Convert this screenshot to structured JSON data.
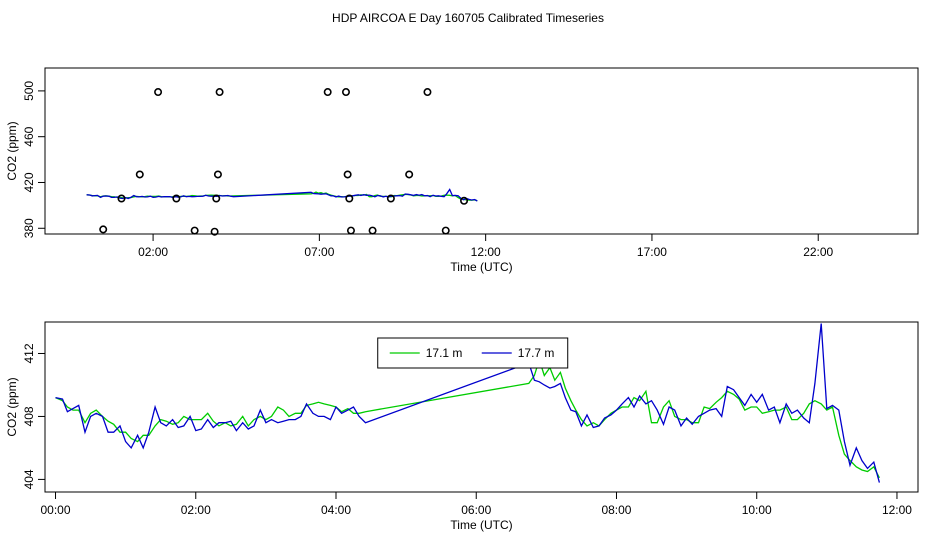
{
  "figure_title": "HDP AIRCOA E  Day 160705  Calibrated Timeseries",
  "chart_data": [
    {
      "type": "scatter",
      "xlabel": "Time (UTC)",
      "ylabel": "CO2 (ppm)",
      "xlim": [
        -1.25,
        25.0
      ],
      "ylim": [
        375,
        520
      ],
      "xticks": [
        2,
        7,
        12,
        17,
        22
      ],
      "xtick_labels": [
        "02:00",
        "07:00",
        "12:00",
        "17:00",
        "22:00"
      ],
      "yticks": [
        380,
        420,
        460,
        500
      ],
      "ytick_labels": [
        "380",
        "420",
        "460",
        "500"
      ],
      "grid": false,
      "calibration_points": {
        "x": [
          0.5,
          1.05,
          1.6,
          2.15,
          2.7,
          3.25,
          3.85,
          3.9,
          3.95,
          4.0,
          7.25,
          7.8,
          7.85,
          7.9,
          7.95,
          8.6,
          9.15,
          9.7,
          10.25,
          10.8,
          11.35
        ],
        "y": [
          379,
          406,
          427,
          499,
          406,
          378,
          377,
          406,
          427,
          499,
          499,
          499,
          427,
          406,
          378,
          378,
          406,
          427,
          499,
          378,
          404
        ]
      },
      "series": [
        {
          "name": "17.1 m",
          "color": "#00cc00"
        },
        {
          "name": "17.7 m",
          "color": "#0000cc"
        }
      ],
      "line_y_offset": 0
    },
    {
      "type": "line",
      "xlabel": "Time (UTC)",
      "ylabel": "CO2 (ppm)",
      "xlim": [
        -0.15,
        12.3
      ],
      "ylim": [
        403.2,
        414.0
      ],
      "xticks": [
        0,
        2,
        4,
        6,
        8,
        10,
        12
      ],
      "xtick_labels": [
        "00:00",
        "02:00",
        "04:00",
        "06:00",
        "08:00",
        "10:00",
        "12:00"
      ],
      "yticks": [
        404,
        408,
        412
      ],
      "ytick_labels": [
        "404",
        "408",
        "412"
      ],
      "grid": false,
      "legend_position": "top-center",
      "series": [
        {
          "name": "17.1 m",
          "color": "#00cc00",
          "x": [
            0.0,
            0.1,
            0.17,
            0.25,
            0.33,
            0.42,
            0.5,
            0.58,
            0.67,
            0.75,
            0.83,
            0.92,
            1.0,
            1.08,
            1.17,
            1.25,
            1.33,
            1.42,
            1.5,
            1.58,
            1.67,
            1.75,
            1.83,
            1.92,
            2.0,
            2.08,
            2.17,
            2.25,
            2.33,
            2.42,
            2.5,
            2.58,
            2.67,
            2.75,
            2.83,
            2.92,
            3.0,
            3.08,
            3.17,
            3.25,
            3.33,
            3.42,
            3.5,
            3.58,
            3.67,
            3.75,
            3.83,
            3.92,
            4.0,
            4.08,
            4.17,
            4.25,
            4.33,
            4.42,
            6.75,
            6.83,
            6.9,
            6.97,
            7.05,
            7.12,
            7.2,
            7.27,
            7.35,
            7.42,
            7.5,
            7.58,
            7.67,
            7.75,
            7.83,
            7.92,
            8.0,
            8.08,
            8.17,
            8.25,
            8.33,
            8.42,
            8.5,
            8.58,
            8.67,
            8.75,
            8.83,
            8.92,
            9.0,
            9.08,
            9.17,
            9.25,
            9.33,
            9.42,
            9.5,
            9.58,
            9.67,
            9.75,
            9.83,
            9.92,
            10.0,
            10.08,
            10.17,
            10.25,
            10.33,
            10.42,
            10.5,
            10.58,
            10.67,
            10.75,
            10.83,
            10.92,
            11.0,
            11.08,
            11.17,
            11.25,
            11.33,
            11.42,
            11.5,
            11.58,
            11.67,
            11.75
          ],
          "y": [
            409.2,
            409.0,
            408.6,
            408.4,
            408.4,
            407.6,
            408.2,
            408.4,
            408.0,
            407.7,
            407.5,
            407.0,
            407.0,
            406.6,
            406.4,
            406.8,
            406.8,
            407.4,
            407.8,
            407.7,
            407.5,
            407.6,
            408.0,
            407.8,
            407.8,
            407.8,
            408.2,
            407.7,
            407.4,
            407.6,
            407.4,
            407.5,
            408.0,
            407.4,
            407.8,
            408.0,
            407.8,
            408.0,
            408.6,
            408.4,
            408.0,
            408.2,
            408.2,
            408.7,
            408.8,
            408.9,
            408.8,
            408.7,
            408.6,
            408.3,
            408.5,
            408.2,
            408.2,
            408.3,
            410.1,
            410.6,
            411.6,
            410.6,
            411.1,
            410.3,
            410.8,
            409.8,
            409.0,
            408.4,
            407.8,
            407.4,
            407.6,
            407.4,
            407.8,
            408.2,
            408.4,
            408.6,
            408.6,
            409.2,
            409.0,
            409.6,
            407.6,
            407.6,
            408.6,
            409.0,
            408.0,
            407.8,
            407.8,
            407.6,
            407.6,
            408.6,
            408.5,
            408.9,
            409.2,
            409.6,
            409.4,
            409.1,
            408.4,
            408.6,
            408.6,
            408.2,
            408.3,
            408.4,
            408.4,
            408.6,
            407.8,
            407.8,
            408.2,
            408.8,
            409.0,
            408.8,
            408.4,
            408.6,
            406.8,
            405.6,
            405.2,
            404.8,
            404.6,
            404.5,
            404.8,
            404.1
          ]
        },
        {
          "name": "17.7 m",
          "color": "#0000cc",
          "x": [
            0.0,
            0.1,
            0.17,
            0.25,
            0.33,
            0.42,
            0.5,
            0.58,
            0.67,
            0.75,
            0.83,
            0.92,
            1.0,
            1.08,
            1.17,
            1.25,
            1.33,
            1.42,
            1.5,
            1.58,
            1.67,
            1.75,
            1.83,
            1.92,
            2.0,
            2.08,
            2.17,
            2.25,
            2.33,
            2.42,
            2.5,
            2.58,
            2.67,
            2.75,
            2.83,
            2.92,
            3.0,
            3.08,
            3.17,
            3.25,
            3.33,
            3.42,
            3.5,
            3.58,
            3.67,
            3.75,
            3.83,
            3.92,
            4.0,
            4.08,
            4.17,
            4.25,
            4.33,
            4.42,
            6.75,
            6.83,
            6.9,
            6.97,
            7.05,
            7.12,
            7.2,
            7.27,
            7.35,
            7.42,
            7.5,
            7.58,
            7.67,
            7.75,
            7.83,
            7.92,
            8.0,
            8.08,
            8.17,
            8.25,
            8.33,
            8.42,
            8.5,
            8.58,
            8.67,
            8.75,
            8.83,
            8.92,
            9.0,
            9.08,
            9.17,
            9.25,
            9.33,
            9.42,
            9.5,
            9.58,
            9.67,
            9.75,
            9.83,
            9.92,
            10.0,
            10.08,
            10.17,
            10.25,
            10.33,
            10.42,
            10.5,
            10.58,
            10.67,
            10.75,
            10.83,
            10.92,
            11.0,
            11.08,
            11.17,
            11.25,
            11.33,
            11.42,
            11.5,
            11.58,
            11.67,
            11.75
          ],
          "y": [
            409.2,
            409.1,
            408.3,
            408.5,
            408.7,
            407.0,
            408.0,
            408.2,
            408.0,
            407.0,
            407.0,
            407.4,
            406.4,
            406.0,
            406.8,
            406.0,
            407.0,
            408.6,
            407.6,
            407.4,
            407.8,
            407.3,
            407.4,
            408.0,
            407.1,
            407.2,
            407.8,
            407.3,
            407.6,
            407.6,
            407.7,
            407.1,
            407.6,
            407.2,
            407.4,
            408.4,
            407.6,
            407.8,
            407.6,
            407.7,
            407.8,
            407.8,
            408.0,
            408.8,
            408.2,
            408.0,
            408.0,
            407.8,
            408.6,
            408.2,
            408.4,
            408.6,
            408.0,
            407.6,
            411.4,
            410.3,
            410.2,
            410.0,
            409.8,
            409.9,
            410.1,
            409.2,
            408.4,
            408.3,
            407.4,
            408.1,
            407.3,
            407.4,
            407.9,
            408.1,
            408.4,
            408.8,
            409.2,
            408.6,
            409.3,
            408.8,
            409.0,
            408.4,
            407.5,
            408.6,
            408.4,
            407.4,
            407.9,
            407.5,
            408.0,
            408.2,
            408.4,
            408.5,
            408.0,
            409.9,
            409.7,
            409.2,
            408.7,
            409.4,
            408.9,
            409.4,
            408.4,
            408.6,
            407.6,
            408.8,
            408.2,
            408.4,
            407.9,
            407.6,
            410.1,
            413.9,
            408.5,
            408.7,
            408.4,
            406.4,
            404.9,
            406.0,
            405.2,
            404.7,
            405.1,
            403.8
          ]
        }
      ]
    }
  ]
}
